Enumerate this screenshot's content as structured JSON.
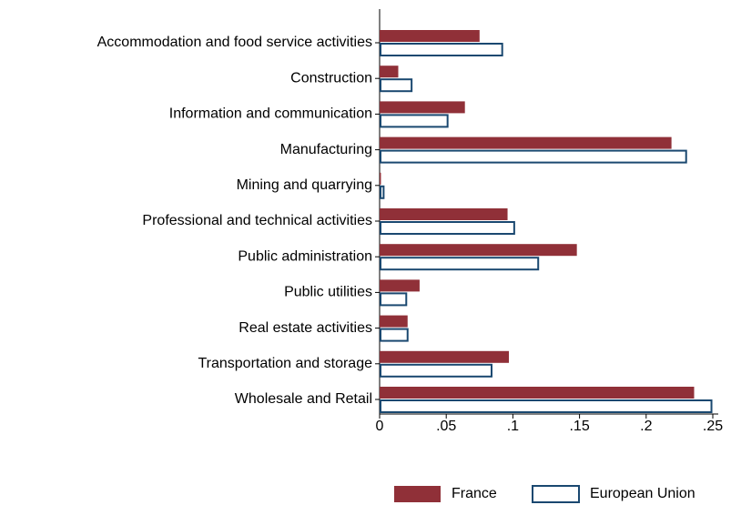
{
  "chart_data": {
    "type": "hbar",
    "categories": [
      "Accommodation and food service activities",
      "Construction",
      "Information and communication",
      "Manufacturing",
      "Mining and quarrying",
      "Professional and technical activities",
      "Public administration",
      "Public utilities",
      "Real estate activities",
      "Transportation and storage",
      "Wholesale and Retail"
    ],
    "series": [
      {
        "name": "France",
        "color": "#903038",
        "values": [
          0.075,
          0.014,
          0.064,
          0.219,
          0.001,
          0.096,
          0.148,
          0.03,
          0.021,
          0.097,
          0.236
        ]
      },
      {
        "name": "European Union",
        "color": "#1a4870",
        "values": [
          0.092,
          0.024,
          0.051,
          0.23,
          0.003,
          0.101,
          0.119,
          0.02,
          0.021,
          0.084,
          0.249
        ]
      }
    ],
    "xlim": [
      0,
      0.25
    ],
    "xticks": [
      0,
      {
        "value": 0.05,
        "label": ".05"
      },
      {
        "value": 0.1,
        "label": ".1"
      },
      {
        "value": 0.15,
        "label": ".15"
      },
      {
        "value": 0.2,
        "label": ".2"
      },
      {
        "value": 0.25,
        "label": ".25"
      }
    ]
  }
}
